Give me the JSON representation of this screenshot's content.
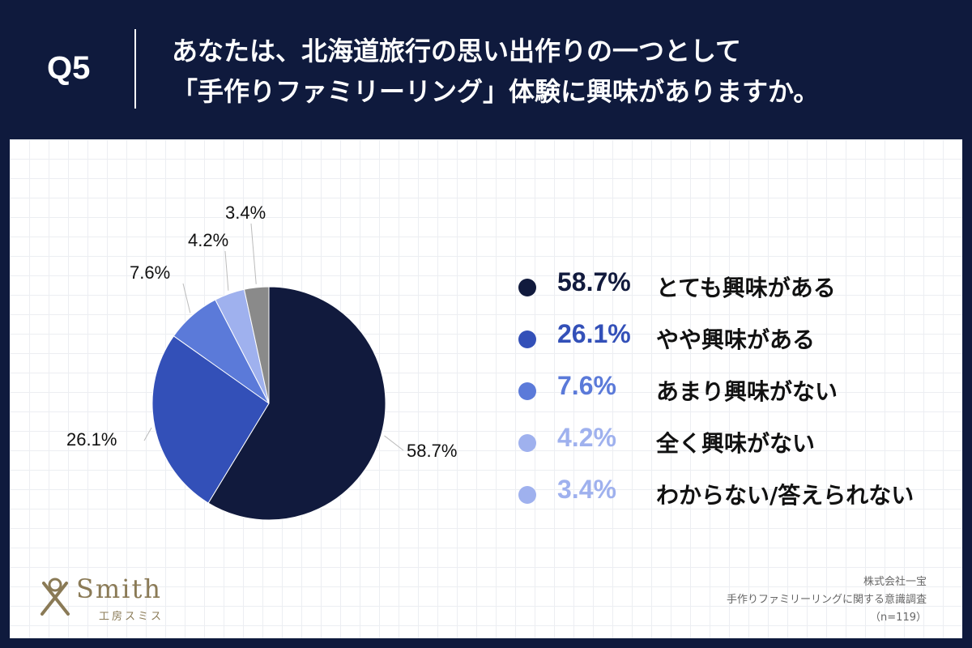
{
  "header": {
    "question_number": "Q5",
    "title_line1": "あなたは、北海道旅行の思い出作りの一つとして",
    "title_line2": "「手作りファミリーリング」体験に興味がありますか。"
  },
  "chart_data": {
    "type": "pie",
    "title": "あなたは、北海道旅行の思い出作りの一つとして「手作りファミリーリング」体験に興味がありますか。",
    "slices": [
      {
        "label": "とても興味がある",
        "value": 58.7,
        "pct_text": "58.7%",
        "color": "#111a3d",
        "legend_text_color": "#111a3d"
      },
      {
        "label": "やや興味がある",
        "value": 26.1,
        "pct_text": "26.1%",
        "color": "#3350b8",
        "legend_text_color": "#3350b8"
      },
      {
        "label": "あまり興味がない",
        "value": 7.6,
        "pct_text": "7.6%",
        "color": "#5b7ad9",
        "legend_text_color": "#5b7ad9"
      },
      {
        "label": "全く興味がない",
        "value": 4.2,
        "pct_text": "4.2%",
        "color": "#9fb1ee",
        "legend_text_color": "#9fb1ee"
      },
      {
        "label": "わからない/答えられない",
        "value": 3.4,
        "pct_text": "3.4%",
        "color": "#8a8a8a",
        "legend_text_color": "#9fb1ee",
        "legend_dot_color": "#9fb1ee"
      }
    ],
    "legend_position": "right"
  },
  "branding": {
    "logo_word": "Smith",
    "logo_sub": "工房スミス"
  },
  "source": {
    "company": "株式会社一宝",
    "survey": "手作りファミリーリングに関する意識調査",
    "sample": "（n=119）"
  }
}
